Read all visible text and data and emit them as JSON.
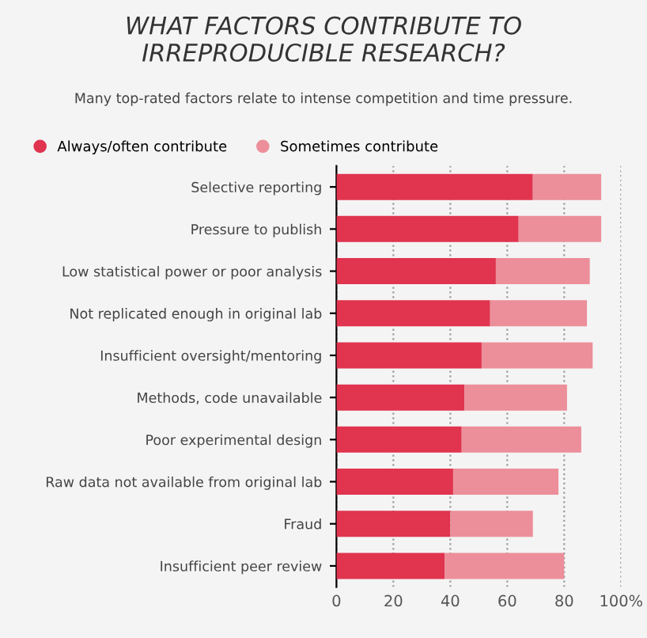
{
  "chart_data": {
    "type": "bar",
    "orientation": "horizontal",
    "stacked": true,
    "title": "WHAT FACTORS CONTRIBUTE TO\nIRREPRODUCIBLE RESEARCH?",
    "subtitle": "Many top-rated factors relate to intense competition and time pressure.",
    "categories": [
      "Selective reporting",
      "Pressure to publish",
      "Low statistical power or poor analysis",
      "Not replicated enough in original lab",
      "Insufficient oversight/mentoring",
      "Methods, code unavailable",
      "Poor experimental design",
      "Raw data not available from original lab",
      "Fraud",
      "Insufficient peer review"
    ],
    "series": [
      {
        "name": "Always/often contribute",
        "color": "#e0344f",
        "values": [
          69,
          64,
          56,
          54,
          51,
          45,
          44,
          41,
          40,
          38
        ]
      },
      {
        "name": "Sometimes contribute",
        "color": "#ec8f9a",
        "values": [
          24,
          29,
          33,
          34,
          39,
          36,
          42,
          37,
          29,
          42
        ]
      }
    ],
    "xlim": [
      0,
      100
    ],
    "xticks": [
      0,
      20,
      40,
      60,
      80,
      {
        "value": 100,
        "label": "100%"
      }
    ],
    "grid": "x",
    "legend": "top left"
  }
}
